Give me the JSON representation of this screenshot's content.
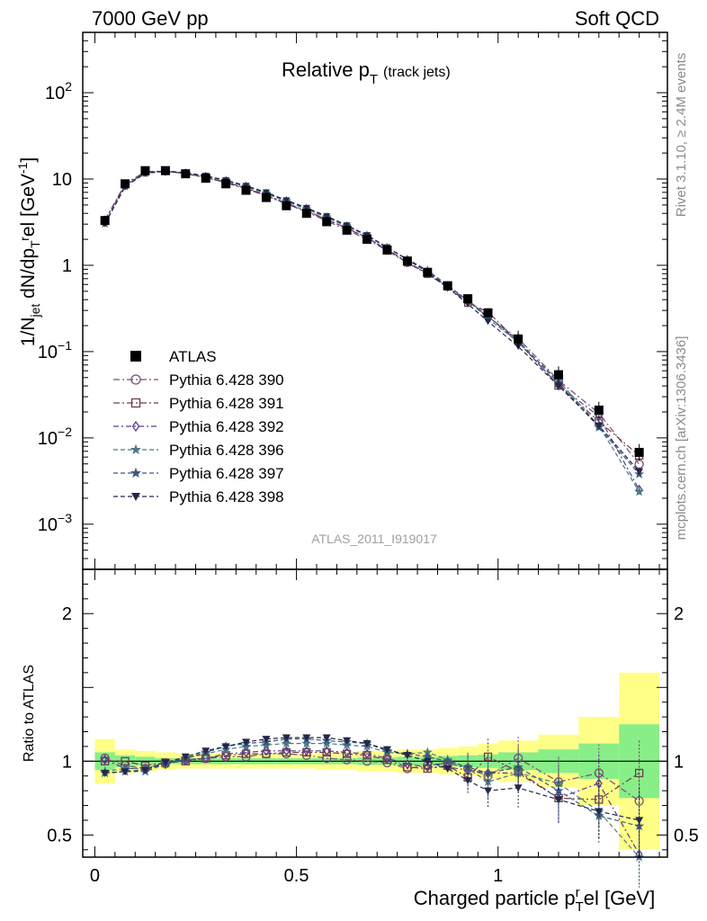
{
  "header": {
    "left": "7000 GeV pp",
    "right": "Soft QCD"
  },
  "side": {
    "rivet": "Rivet 3.1.10, ≥ 2.4M events",
    "mcplots": "mcplots.cern.ch [arXiv:1306.3436]"
  },
  "chart_data": {
    "type": "line",
    "title": "Relative p_T (track jets)",
    "title_main": "Relative p",
    "title_sub": "T",
    "title_paren": "(track jets)",
    "ylabel": "1/N_jet dN/dp_T^rel [GeV^-1]",
    "xlabel": "Charged particle p_T^rel [GeV]",
    "ratio_ylabel": "Ratio to ATLAS",
    "watermark": "ATLAS_2011_I919017",
    "xlim": [
      -0.03,
      1.42
    ],
    "ylim": [
      0.0003,
      500
    ],
    "ratio_ylim": [
      0.35,
      2.3
    ],
    "x_ticks": [
      {
        "v": 0,
        "label": "0"
      },
      {
        "v": 0.5,
        "label": "0.5"
      },
      {
        "v": 1,
        "label": "1"
      }
    ],
    "y_ticks": [
      {
        "v": 0.001,
        "base": "10",
        "exp": "−3"
      },
      {
        "v": 0.01,
        "base": "10",
        "exp": "−2"
      },
      {
        "v": 0.1,
        "base": "10",
        "exp": "−1"
      },
      {
        "v": 1,
        "base": "1",
        "exp": ""
      },
      {
        "v": 10,
        "base": "10",
        "exp": ""
      },
      {
        "v": 100,
        "base": "10",
        "exp": "2"
      }
    ],
    "ratio_ticks": [
      {
        "v": 0.5,
        "label": "0.5"
      },
      {
        "v": 1,
        "label": "1"
      },
      {
        "v": 2,
        "label": "2"
      }
    ],
    "bins": [
      [
        0,
        0.05
      ],
      [
        0.05,
        0.1
      ],
      [
        0.1,
        0.15
      ],
      [
        0.15,
        0.2
      ],
      [
        0.2,
        0.25
      ],
      [
        0.25,
        0.3
      ],
      [
        0.3,
        0.35
      ],
      [
        0.35,
        0.4
      ],
      [
        0.4,
        0.45
      ],
      [
        0.45,
        0.5
      ],
      [
        0.5,
        0.55
      ],
      [
        0.55,
        0.6
      ],
      [
        0.6,
        0.65
      ],
      [
        0.65,
        0.7
      ],
      [
        0.7,
        0.75
      ],
      [
        0.75,
        0.8
      ],
      [
        0.8,
        0.85
      ],
      [
        0.85,
        0.9
      ],
      [
        0.9,
        0.95
      ],
      [
        0.95,
        1.0
      ],
      [
        1.0,
        1.1
      ],
      [
        1.1,
        1.2
      ],
      [
        1.2,
        1.3
      ],
      [
        1.3,
        1.4
      ]
    ],
    "x": [
      0.025,
      0.075,
      0.125,
      0.175,
      0.225,
      0.275,
      0.325,
      0.375,
      0.425,
      0.475,
      0.525,
      0.575,
      0.625,
      0.675,
      0.725,
      0.775,
      0.825,
      0.875,
      0.925,
      0.975,
      1.05,
      1.15,
      1.25,
      1.35
    ],
    "data": {
      "name": "ATLAS",
      "values": [
        3.3,
        8.8,
        12.5,
        12.5,
        11.5,
        10.2,
        8.8,
        7.4,
        6.1,
        4.9,
        4.0,
        3.2,
        2.55,
        2.0,
        1.5,
        1.12,
        0.83,
        0.58,
        0.41,
        0.28,
        0.14,
        0.054,
        0.021,
        0.0068
      ],
      "band_stat": [
        0.06,
        0.04,
        0.03,
        0.02,
        0.02,
        0.02,
        0.02,
        0.02,
        0.02,
        0.02,
        0.02,
        0.02,
        0.02,
        0.025,
        0.025,
        0.03,
        0.03,
        0.035,
        0.04,
        0.045,
        0.06,
        0.08,
        0.12,
        0.25
      ],
      "band_tot": [
        0.15,
        0.08,
        0.07,
        0.06,
        0.05,
        0.05,
        0.05,
        0.05,
        0.05,
        0.05,
        0.05,
        0.06,
        0.06,
        0.07,
        0.07,
        0.08,
        0.08,
        0.09,
        0.1,
        0.12,
        0.14,
        0.18,
        0.3,
        0.6
      ]
    },
    "series": [
      {
        "name": "Pythia 6.428 390",
        "marker": "circle",
        "color": "#7a4d78",
        "dash": "7,3,2,3",
        "ratio": [
          1.02,
          0.97,
          0.95,
          0.99,
          1.01,
          1.02,
          1.03,
          1.03,
          1.05,
          1.05,
          1.04,
          1.02,
          1.01,
          1.0,
          0.99,
          0.95,
          0.97,
          0.99,
          0.95,
          0.9,
          1.02,
          0.86,
          0.92,
          0.73
        ]
      },
      {
        "name": "Pythia 6.428 391",
        "marker": "square",
        "color": "#6a3f4a",
        "dash": "7,3,2,3",
        "ratio": [
          1.0,
          1.0,
          0.97,
          0.99,
          1.0,
          1.02,
          1.04,
          1.05,
          1.05,
          1.06,
          1.06,
          1.06,
          1.05,
          1.04,
          1.01,
          0.96,
          0.95,
          0.97,
          0.89,
          1.03,
          0.93,
          0.75,
          0.74,
          0.92
        ]
      },
      {
        "name": "Pythia 6.428 392",
        "marker": "diamond",
        "color": "#5a3a8a",
        "dash": "6,3,2,3",
        "ratio": [
          1.01,
          0.95,
          0.95,
          0.98,
          1.01,
          1.02,
          1.05,
          1.06,
          1.07,
          1.07,
          1.07,
          1.07,
          1.06,
          1.05,
          1.02,
          0.98,
          0.96,
          0.96,
          0.94,
          0.92,
          0.92,
          0.75,
          0.85,
          0.37
        ]
      },
      {
        "name": "Pythia 6.428 396",
        "marker": "star",
        "color": "#4a7a82",
        "dash": "5,3",
        "ratio": [
          0.93,
          0.95,
          0.95,
          0.99,
          1.02,
          1.05,
          1.08,
          1.1,
          1.11,
          1.12,
          1.12,
          1.12,
          1.11,
          1.1,
          1.06,
          1.05,
          1.06,
          1.01,
          0.95,
          0.86,
          0.92,
          0.85,
          0.66,
          0.35
        ]
      },
      {
        "name": "Pythia 6.428 397",
        "marker": "star",
        "color": "#3a5a7a",
        "dash": "5,3",
        "ratio": [
          0.92,
          0.93,
          0.93,
          0.98,
          1.02,
          1.06,
          1.1,
          1.12,
          1.13,
          1.15,
          1.15,
          1.14,
          1.13,
          1.12,
          1.07,
          1.05,
          1.03,
          1.0,
          0.96,
          0.92,
          0.96,
          0.8,
          0.63,
          0.56
        ]
      },
      {
        "name": "Pythia 6.428 398",
        "marker": "tridown",
        "color": "#23284a",
        "dash": "5,3",
        "ratio": [
          0.92,
          0.93,
          0.94,
          0.99,
          1.03,
          1.07,
          1.1,
          1.13,
          1.15,
          1.16,
          1.16,
          1.16,
          1.14,
          1.12,
          1.08,
          1.04,
          1.0,
          0.95,
          0.87,
          0.8,
          0.82,
          0.74,
          0.66,
          0.6
        ]
      }
    ]
  }
}
